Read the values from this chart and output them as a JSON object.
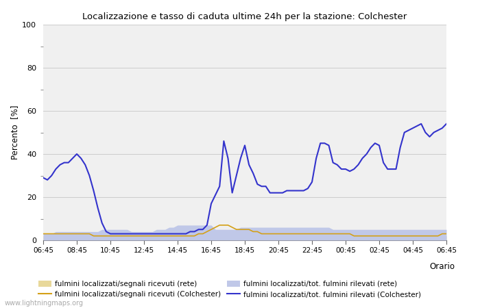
{
  "title": "Localizzazione e tasso di caduta ultime 24h per la stazione: Colchester",
  "ylabel": "Percento  [%]",
  "ylim": [
    0,
    100
  ],
  "background_color": "#ffffff",
  "plot_bg_color": "#f0f0f0",
  "grid_color": "#cccccc",
  "watermark": "www.lightningmaps.org",
  "x_ticks": [
    "06:45",
    "08:45",
    "10:45",
    "12:45",
    "14:45",
    "16:45",
    "18:45",
    "20:45",
    "22:45",
    "00:45",
    "02:45",
    "04:45",
    "06:45"
  ],
  "legend": [
    {
      "label": "fulmini localizzati/segnali ricevuti (rete)",
      "color": "#e8d89a",
      "type": "fill"
    },
    {
      "label": "fulmini localizzati/segnali ricevuti (Colchester)",
      "color": "#d4a017",
      "type": "line"
    },
    {
      "label": "fulmini localizzati/tot. fulmini rilevati (rete)",
      "color": "#c0c8e8",
      "type": "fill"
    },
    {
      "label": "fulmini localizzati/tot. fulmini rilevati (Colchester)",
      "color": "#3333cc",
      "type": "line"
    }
  ],
  "n_points": 97,
  "blue_line": [
    29,
    28,
    30,
    33,
    35,
    36,
    36,
    38,
    40,
    38,
    35,
    30,
    23,
    15,
    8,
    4,
    3,
    3,
    3,
    3,
    3,
    3,
    3,
    3,
    3,
    3,
    3,
    3,
    3,
    3,
    3,
    3,
    3,
    3,
    3,
    4,
    4,
    5,
    5,
    7,
    17,
    21,
    25,
    46,
    38,
    22,
    30,
    38,
    44,
    35,
    31,
    26,
    25,
    25,
    22,
    22,
    22,
    22,
    23,
    23,
    23,
    23,
    23,
    24,
    27,
    38,
    45,
    45,
    44,
    36,
    35,
    33,
    33,
    32,
    33,
    35,
    38,
    40,
    43,
    45,
    44,
    36,
    33,
    33,
    33,
    43,
    50,
    51,
    52,
    53,
    54,
    50,
    48,
    50,
    51,
    52,
    54
  ],
  "orange_line": [
    3,
    3,
    3,
    3,
    3,
    3,
    3,
    3,
    3,
    3,
    3,
    3,
    2,
    2,
    2,
    2,
    2,
    2,
    2,
    2,
    2,
    2,
    2,
    2,
    2,
    2,
    2,
    2,
    2,
    2,
    2,
    2,
    2,
    2,
    2,
    2,
    2,
    3,
    3,
    4,
    5,
    6,
    7,
    7,
    7,
    6,
    5,
    5,
    5,
    5,
    4,
    4,
    3,
    3,
    3,
    3,
    3,
    3,
    3,
    3,
    3,
    3,
    3,
    3,
    3,
    3,
    3,
    3,
    3,
    3,
    3,
    3,
    3,
    3,
    2,
    2,
    2,
    2,
    2,
    2,
    2,
    2,
    2,
    2,
    2,
    2,
    2,
    2,
    2,
    2,
    2,
    2,
    2,
    2,
    2,
    3,
    3
  ],
  "blue_fill": [
    3,
    3,
    3,
    4,
    4,
    4,
    4,
    4,
    4,
    4,
    4,
    4,
    4,
    4,
    5,
    5,
    5,
    5,
    5,
    5,
    5,
    4,
    4,
    4,
    4,
    4,
    4,
    5,
    5,
    5,
    6,
    6,
    7,
    7,
    7,
    7,
    7,
    7,
    7,
    7,
    7,
    5,
    5,
    5,
    5,
    5,
    5,
    6,
    6,
    6,
    6,
    6,
    6,
    6,
    6,
    6,
    6,
    6,
    6,
    6,
    6,
    6,
    6,
    6,
    6,
    6,
    6,
    6,
    6,
    5,
    5,
    5,
    5,
    5,
    5,
    5,
    5,
    5,
    5,
    5,
    5,
    5,
    5,
    5,
    5,
    5,
    5,
    5,
    5,
    5,
    5,
    5,
    5,
    5,
    5,
    5,
    5
  ],
  "orange_fill": [
    2,
    2,
    2,
    2,
    2,
    2,
    2,
    2,
    2,
    2,
    2,
    2,
    2,
    2,
    2,
    2,
    2,
    2,
    2,
    2,
    2,
    2,
    2,
    2,
    2,
    2,
    2,
    2,
    2,
    2,
    2,
    2,
    2,
    2,
    2,
    2,
    2,
    2,
    2,
    2,
    3,
    3,
    3,
    3,
    3,
    3,
    3,
    3,
    3,
    3,
    3,
    3,
    2,
    2,
    2,
    2,
    2,
    2,
    2,
    2,
    2,
    2,
    2,
    2,
    2,
    2,
    2,
    2,
    2,
    2,
    2,
    2,
    2,
    2,
    2,
    2,
    2,
    2,
    2,
    2,
    2,
    2,
    2,
    2,
    2,
    2,
    2,
    2,
    2,
    2,
    2,
    2,
    2,
    2,
    2,
    2,
    2
  ]
}
